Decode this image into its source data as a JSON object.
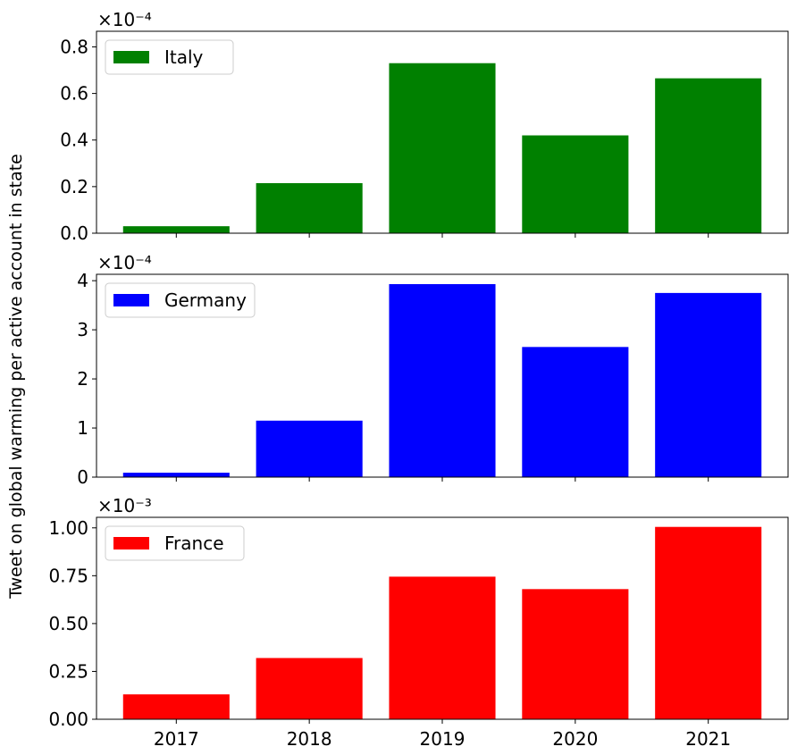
{
  "ylabel": "Tweet on global warming per active account in state",
  "categories": [
    "2017",
    "2018",
    "2019",
    "2020",
    "2021"
  ],
  "chart_data": [
    {
      "type": "bar",
      "categories": [
        "2017",
        "2018",
        "2019",
        "2020",
        "2021"
      ],
      "series": [
        {
          "name": "Italy",
          "color": "#008000",
          "values": [
            0.03,
            0.215,
            0.73,
            0.42,
            0.665
          ]
        }
      ],
      "scale_label": "×10⁻⁴",
      "yticks": [
        "0.0",
        "0.2",
        "0.4",
        "0.6",
        "0.8"
      ],
      "ytick_values": [
        0,
        0.2,
        0.4,
        0.6,
        0.8
      ],
      "ylim": [
        0,
        0.867
      ],
      "legend": "top-left",
      "grid": false,
      "show_xtick_labels": false
    },
    {
      "type": "bar",
      "categories": [
        "2017",
        "2018",
        "2019",
        "2020",
        "2021"
      ],
      "series": [
        {
          "name": "Germany",
          "color": "#0000ff",
          "values": [
            0.09,
            1.15,
            3.93,
            2.65,
            3.75
          ]
        }
      ],
      "scale_label": "×10⁻⁴",
      "yticks": [
        "0",
        "1",
        "2",
        "3",
        "4"
      ],
      "ytick_values": [
        0,
        1,
        2,
        3,
        4
      ],
      "ylim": [
        0,
        4.13
      ],
      "legend": "top-left",
      "grid": false,
      "show_xtick_labels": false
    },
    {
      "type": "bar",
      "categories": [
        "2017",
        "2018",
        "2019",
        "2020",
        "2021"
      ],
      "series": [
        {
          "name": "France",
          "color": "#ff0000",
          "values": [
            0.13,
            0.32,
            0.745,
            0.68,
            1.005
          ]
        }
      ],
      "scale_label": "×10⁻³",
      "yticks": [
        "0.00",
        "0.25",
        "0.50",
        "0.75",
        "1.00"
      ],
      "ytick_values": [
        0,
        0.25,
        0.5,
        0.75,
        1.0
      ],
      "ylim": [
        0,
        1.055
      ],
      "legend": "top-left",
      "grid": false,
      "show_xtick_labels": true
    }
  ]
}
